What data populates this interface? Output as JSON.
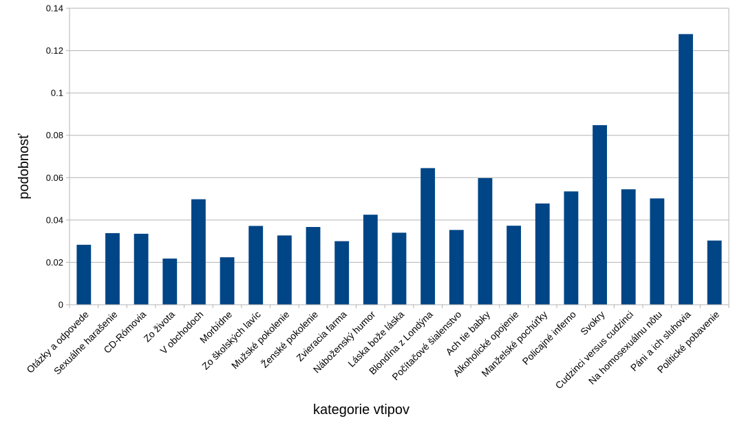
{
  "chart_data": {
    "type": "bar",
    "title": "",
    "xlabel": "kategorie vtipov",
    "ylabel": "podobnosť",
    "ylim": [
      0,
      0.14
    ],
    "y_ticks": [
      "0",
      "0.02",
      "0.04",
      "0.06",
      "0.08",
      "0.1",
      "0.12",
      "0.14"
    ],
    "grid": true,
    "legend": "none",
    "bar_color": "#004586",
    "categories": [
      "Otázky a odpovede",
      "Sexuálne harašenie",
      "CD-Rómovia",
      "Zo života",
      "V obchodoch",
      "Morbídne",
      "Zo školských lavíc",
      "Mužské pokolenie",
      "Ženské pokolenie",
      "Zvieracia farma",
      "Náboženský humor",
      "Láska bože láska",
      "Blondína z Londýna",
      "Počítačové šialenstvo",
      "Ach tie babky",
      "Alkoholické opojenie",
      "Manželské pochúťky",
      "Policajné inferno",
      "Svokry",
      "Cudzinci versus cudzinci",
      "Na homosexuálnu nôtu",
      "Páni a ich sluhovia",
      "Politické pobavenie"
    ],
    "values": [
      0.0283,
      0.0338,
      0.0335,
      0.0218,
      0.0498,
      0.0224,
      0.0372,
      0.0327,
      0.0367,
      0.03,
      0.0425,
      0.034,
      0.0645,
      0.0353,
      0.0598,
      0.0373,
      0.0478,
      0.0535,
      0.0848,
      0.0545,
      0.0502,
      0.1278,
      0.0303
    ]
  }
}
